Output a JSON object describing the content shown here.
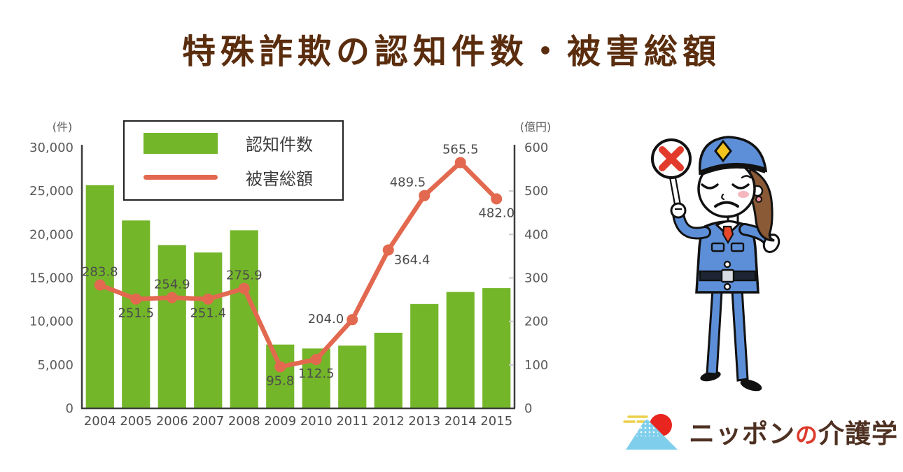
{
  "page": {
    "title": "特殊詐欺の認知件数・被害総額"
  },
  "colors": {
    "title_brown": "#5a2d0e",
    "bar_green": "#74b629",
    "line_red": "#e2694f",
    "logo_brown": "#4e3122",
    "logo_red": "#dd3a2c"
  },
  "chart_data": {
    "type": "bar+line",
    "title": "特殊詐欺の認知件数・被害総額",
    "categories": [
      "2004",
      "2005",
      "2006",
      "2007",
      "2008",
      "2009",
      "2010",
      "2011",
      "2012",
      "2013",
      "2014",
      "2015"
    ],
    "series": [
      {
        "name": "認知件数",
        "type": "bar",
        "axis": "left",
        "unit": "件",
        "color": "#74b629",
        "values": [
          25667,
          21612,
          18787,
          17930,
          20481,
          7340,
          6888,
          7216,
          8693,
          11998,
          13392,
          13828
        ]
      },
      {
        "name": "被害総額",
        "type": "line",
        "axis": "right",
        "unit": "億円",
        "color": "#e2694f",
        "values": [
          283.8,
          251.5,
          254.9,
          251.4,
          275.9,
          95.8,
          112.5,
          204.0,
          364.4,
          489.5,
          565.5,
          482.0
        ],
        "labels": [
          "283.8",
          "251.5",
          "254.9",
          "251.4",
          "275.9",
          "95.8",
          "112.5",
          "204.0",
          "364.4",
          "489.5",
          "565.5",
          "482.0"
        ],
        "label_positions": [
          "above",
          "below",
          "above",
          "below",
          "above",
          "below",
          "below",
          "left",
          "below-right",
          "above-left",
          "above",
          "below"
        ]
      }
    ],
    "left_axis": {
      "unit_label": "(件)",
      "min": 0,
      "max": 30000,
      "step": 5000
    },
    "right_axis": {
      "unit_label": "(億円)",
      "min": 0,
      "max": 600,
      "step": 100
    },
    "grid": false,
    "legend_position": "top-left-inside"
  },
  "logo": {
    "part1": "ニッポン",
    "accent": "の",
    "part2": "介護学"
  }
}
